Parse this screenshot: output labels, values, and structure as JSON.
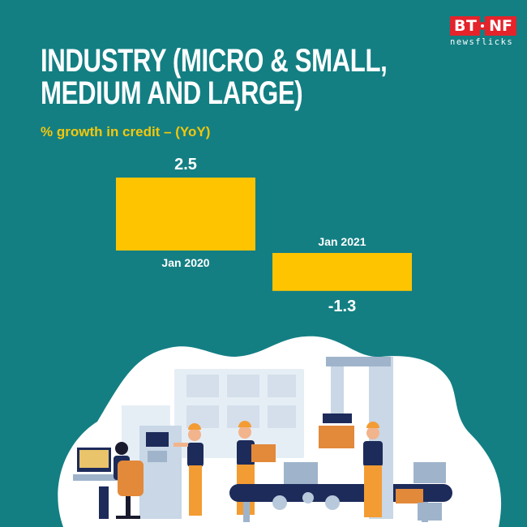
{
  "brand": {
    "logo_left": "BT",
    "logo_right": "NF",
    "tagline": "newsflicks"
  },
  "header": {
    "title_line1": "INDUSTRY (MICRO & SMALL,",
    "title_line2": "MEDIUM AND LARGE)",
    "subtitle": "% growth in credit – (YoY)"
  },
  "colors": {
    "background": "#137f83",
    "bar": "#fec400",
    "title": "#ffffff",
    "subtitle": "#f5c70a",
    "brand_red": "#e4232b"
  },
  "chart_data": {
    "type": "bar",
    "categories": [
      "Jan 2020",
      "Jan 2021"
    ],
    "values": [
      2.5,
      -1.3
    ],
    "value_labels": [
      "2.5",
      "-1.3"
    ],
    "title": "INDUSTRY (MICRO & SMALL, MEDIUM AND LARGE)",
    "subtitle": "% growth in credit – (YoY)",
    "ylabel": "",
    "xlabel": "",
    "grid": false,
    "legend": "none"
  },
  "illustration": {
    "icons": [
      "factory-workers-icon",
      "conveyor-belt-icon",
      "robotic-arm-icon",
      "computer-terminal-icon",
      "office-chair-icon",
      "cardboard-box-icon",
      "gear-icon"
    ]
  }
}
